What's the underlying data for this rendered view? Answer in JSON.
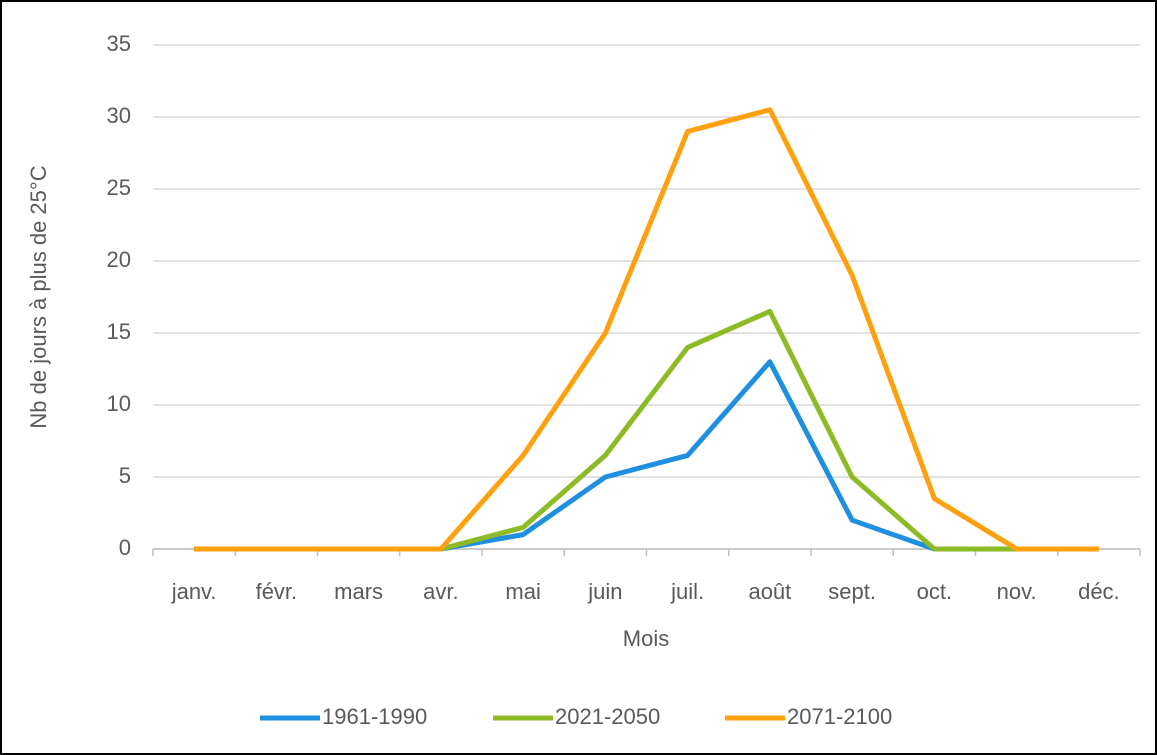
{
  "chart_data": {
    "type": "line",
    "ylabel": "Nb de jours à plus de 25°C",
    "xlabel": "Mois",
    "categories": [
      "janv.",
      "févr.",
      "mars",
      "avr.",
      "mai",
      "juin",
      "juil.",
      "août",
      "sept.",
      "oct.",
      "nov.",
      "déc."
    ],
    "series": [
      {
        "name": "1961-1990",
        "color": "#1f8fe0",
        "values": [
          0,
          0,
          0,
          0,
          1,
          5,
          6.5,
          13,
          2,
          0,
          null,
          null
        ]
      },
      {
        "name": "2021-2050",
        "color": "#8dbb25",
        "values": [
          0,
          0,
          0,
          0,
          1.5,
          6.5,
          14,
          16.5,
          5,
          0,
          0,
          null
        ]
      },
      {
        "name": "2071-2100",
        "color": "#ffa00e",
        "values": [
          0,
          0,
          0,
          0,
          6.5,
          15,
          29,
          30.5,
          19,
          3.5,
          0,
          0
        ]
      }
    ],
    "ylim": [
      0,
      35
    ],
    "yticks": [
      0,
      5,
      10,
      15,
      20,
      25,
      30,
      35
    ],
    "grid": true,
    "legend": "bottom"
  }
}
